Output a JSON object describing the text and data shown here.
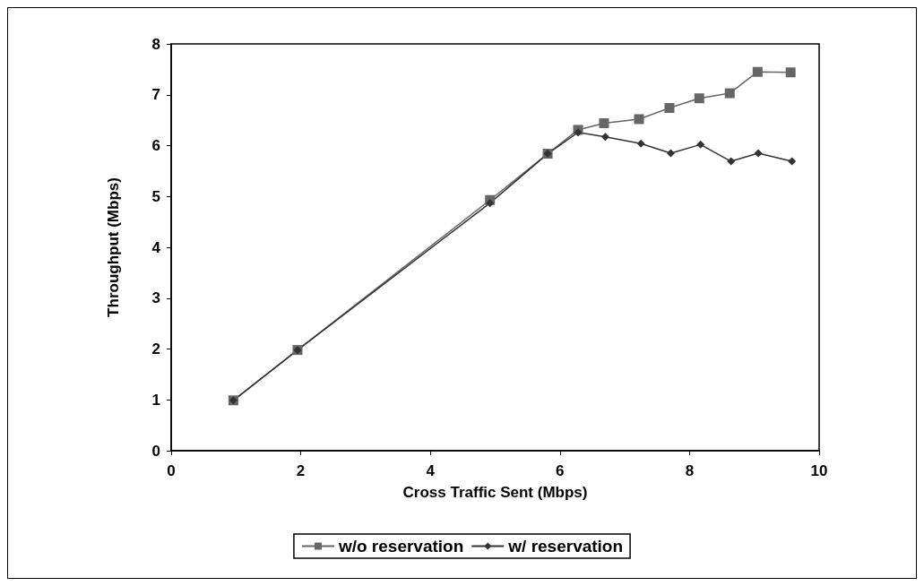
{
  "chart_data": {
    "type": "line",
    "xlabel": "Cross Traffic Sent (Mbps)",
    "ylabel": "Throughput (Mbps)",
    "xlim": [
      0,
      10
    ],
    "xticks": [
      0,
      2,
      4,
      6,
      8,
      10
    ],
    "ylim": [
      0,
      8
    ],
    "yticks": [
      0,
      1,
      2,
      3,
      4,
      5,
      6,
      7,
      8
    ],
    "grid": false,
    "legend": "bottom",
    "series": [
      {
        "name": "w/o reservation",
        "color": "#666666",
        "marker": "square",
        "x": [
          0.96,
          1.95,
          4.92,
          5.81,
          6.28,
          6.68,
          7.22,
          7.69,
          8.15,
          8.62,
          9.05,
          9.56
        ],
        "values": [
          0.99,
          1.98,
          4.93,
          5.84,
          6.31,
          6.44,
          6.52,
          6.74,
          6.93,
          7.03,
          7.45,
          7.44
        ]
      },
      {
        "name": "w/ reservation",
        "color": "#333333",
        "marker": "diamond",
        "x": [
          0.96,
          1.95,
          4.92,
          5.81,
          6.28,
          6.7,
          7.25,
          7.71,
          8.17,
          8.64,
          9.06,
          9.58
        ],
        "values": [
          0.99,
          1.98,
          4.87,
          5.84,
          6.26,
          6.17,
          6.04,
          5.85,
          6.02,
          5.69,
          5.85,
          5.69
        ]
      }
    ]
  }
}
